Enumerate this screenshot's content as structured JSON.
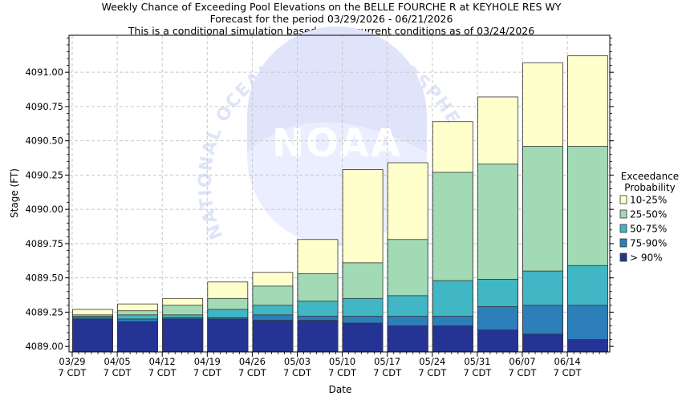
{
  "chart_data": {
    "type": "bar",
    "title_lines": [
      "Weekly Chance of Exceeding Pool Elevations on the BELLE FOURCHE R at KEYHOLE RES WY",
      "Forecast for the period 03/29/2026 - 06/21/2026",
      "This is a conditional simulation based on the current conditions as of 03/24/2026"
    ],
    "xlabel": "Date",
    "ylabel": "Stage (FT)",
    "ylim": [
      4088.96,
      4091.27
    ],
    "yticks": [
      4089.0,
      4089.25,
      4089.5,
      4089.75,
      4090.0,
      4090.25,
      4090.5,
      4090.75,
      4091.0
    ],
    "ytick_labels": [
      "4089.00",
      "4089.25",
      "4089.50",
      "4089.75",
      "4090.00",
      "4090.25",
      "4090.50",
      "4090.75",
      "4091.00"
    ],
    "categories": [
      [
        "03/29",
        "7 CDT"
      ],
      [
        "04/05",
        "7 CDT"
      ],
      [
        "04/12",
        "7 CDT"
      ],
      [
        "04/19",
        "7 CDT"
      ],
      [
        "04/26",
        "7 CDT"
      ],
      [
        "05/03",
        "7 CDT"
      ],
      [
        "05/10",
        "7 CDT"
      ],
      [
        "05/17",
        "7 CDT"
      ],
      [
        "05/24",
        "7 CDT"
      ],
      [
        "05/31",
        "7 CDT"
      ],
      [
        "06/07",
        "7 CDT"
      ],
      [
        "06/14",
        "7 CDT"
      ]
    ],
    "base": 4088.96,
    "series": [
      {
        "name": "> 90%",
        "color": "#253494",
        "values": [
          4089.2,
          4089.18,
          4089.2,
          4089.2,
          4089.19,
          4089.19,
          4089.17,
          4089.15,
          4089.15,
          4089.12,
          4089.09,
          4089.05
        ]
      },
      {
        "name": "75-90%",
        "color": "#2c7fb8",
        "values": [
          4089.21,
          4089.2,
          4089.21,
          4089.21,
          4089.23,
          4089.22,
          4089.22,
          4089.22,
          4089.22,
          4089.29,
          4089.3,
          4089.3
        ]
      },
      {
        "name": "50-75%",
        "color": "#41b6c4",
        "values": [
          4089.22,
          4089.23,
          4089.23,
          4089.27,
          4089.3,
          4089.33,
          4089.35,
          4089.37,
          4089.48,
          4089.49,
          4089.55,
          4089.59
        ]
      },
      {
        "name": "25-50%",
        "color": "#a1dab4",
        "values": [
          4089.23,
          4089.26,
          4089.3,
          4089.35,
          4089.44,
          4089.53,
          4089.61,
          4089.78,
          4090.27,
          4090.33,
          4090.46,
          4090.46
        ]
      },
      {
        "name": "10-25%",
        "color": "#ffffcc",
        "values": [
          4089.27,
          4089.31,
          4089.35,
          4089.47,
          4089.54,
          4089.78,
          4090.29,
          4090.34,
          4090.64,
          4090.82,
          4091.07,
          4091.12
        ]
      }
    ],
    "legend": {
      "title_lines": [
        "Exceedance",
        "Probability"
      ],
      "placement": "right",
      "order": [
        "10-25%",
        "25-50%",
        "50-75%",
        "75-90%",
        "> 90%"
      ]
    },
    "grid": true,
    "watermark": {
      "text": "NATIONAL OCEANIC AND ATMOSPHERIC ADMINISTRATION",
      "logo": "NOAA"
    }
  }
}
